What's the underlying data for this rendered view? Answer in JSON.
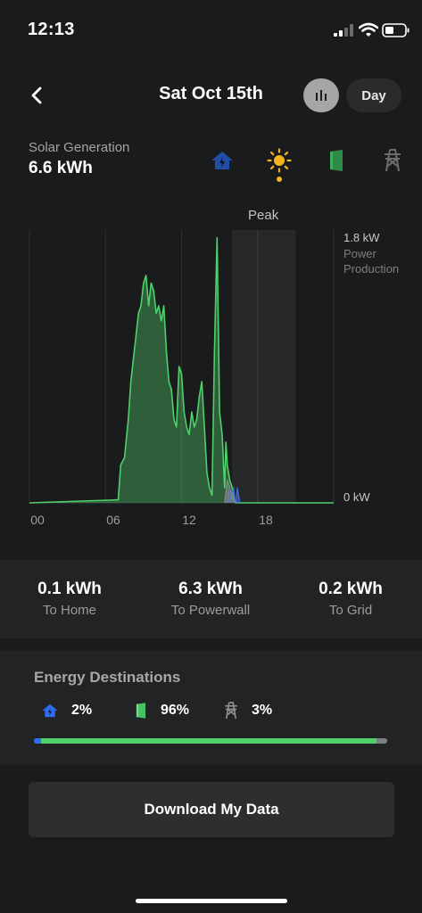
{
  "status_bar": {
    "time": "12:13"
  },
  "header": {
    "title": "Sat Oct 15th",
    "period": "Day"
  },
  "summary": {
    "label": "Solar Generation",
    "value": "6.6 kWh"
  },
  "source_icons": [
    "home-icon",
    "sun-icon",
    "powerwall-icon",
    "grid-tower-icon"
  ],
  "chart": {
    "peak_label": "Peak",
    "y_max_label": "1.8 kW",
    "y_min_label": "0 kW",
    "metric_label": "Power Production",
    "x_ticks": [
      "00",
      "06",
      "12",
      "18"
    ]
  },
  "chart_data": {
    "type": "area",
    "title": "",
    "xlabel": "",
    "ylabel": "Power Production",
    "x_unit": "hour",
    "xlim": [
      0,
      24
    ],
    "ylim": [
      0,
      1.8
    ],
    "shaded_region": {
      "label": "Peak",
      "x": [
        16,
        21
      ]
    },
    "series": [
      {
        "color": "#4fd06a",
        "x": [
          0,
          7.0,
          7.2,
          7.5,
          7.8,
          8.0,
          8.2,
          8.4,
          8.6,
          8.8,
          9.0,
          9.2,
          9.4,
          9.6,
          9.8,
          10.0,
          10.2,
          10.4,
          10.6,
          10.8,
          11.0,
          11.2,
          11.4,
          11.6,
          11.8,
          12.0,
          12.2,
          12.4,
          12.6,
          12.8,
          13.0,
          13.2,
          13.4,
          13.6,
          13.8,
          14.0,
          14.2,
          14.4,
          14.6,
          14.8,
          15.0,
          15.2,
          15.4,
          15.5,
          15.6,
          15.8,
          16.0,
          16.2,
          16.4,
          16.5,
          24
        ],
        "y": [
          0,
          0.02,
          0.25,
          0.3,
          0.55,
          0.8,
          0.95,
          1.1,
          1.25,
          1.3,
          1.45,
          1.5,
          1.3,
          1.45,
          1.4,
          1.25,
          1.3,
          1.2,
          1.3,
          1.0,
          0.8,
          0.75,
          0.55,
          0.5,
          0.9,
          0.85,
          0.6,
          0.5,
          0.45,
          0.6,
          0.5,
          0.55,
          0.7,
          0.8,
          0.5,
          0.2,
          0.1,
          0.05,
          1.0,
          1.75,
          0.6,
          0.45,
          0.1,
          0.4,
          0.25,
          0.15,
          0.1,
          0.02,
          0.0,
          0.0,
          0
        ]
      },
      {
        "color": "#3b6fe0",
        "x": [
          15.6,
          15.7,
          15.9,
          16.1,
          16.2,
          16.3,
          16.4,
          16.6
        ],
        "y": [
          0.0,
          0.08,
          0.02,
          0.1,
          0.03,
          0.0,
          0.1,
          0.0
        ]
      },
      {
        "color": "#8a8b8d",
        "x": [
          15.4,
          15.6,
          15.8,
          16.0,
          16.2,
          16.4
        ],
        "y": [
          0.0,
          0.15,
          0.1,
          0.05,
          0.0,
          0.0
        ]
      }
    ]
  },
  "totals": [
    {
      "value": "0.1 kWh",
      "label": "To Home"
    },
    {
      "value": "6.3 kWh",
      "label": "To Powerwall"
    },
    {
      "value": "0.2 kWh",
      "label": "To Grid"
    }
  ],
  "destinations": {
    "title": "Energy Destinations",
    "items": [
      {
        "icon": "home-icon",
        "value": "2%",
        "color": "#2f6ef0"
      },
      {
        "icon": "powerwall-icon",
        "value": "96%",
        "color": "#4fd06a"
      },
      {
        "icon": "grid-tower-icon",
        "value": "3%",
        "color": "#7d7e80"
      }
    ],
    "bar_fractions": [
      0.02,
      0.95,
      0.03
    ]
  },
  "download": {
    "label": "Download My Data"
  }
}
